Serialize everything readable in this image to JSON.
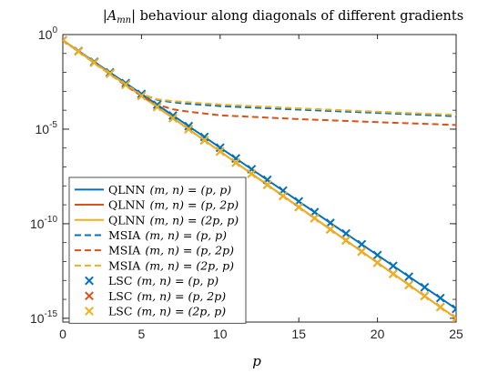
{
  "chart_data": {
    "type": "line",
    "title": "|A_mn| behaviour along diagonals of different gradients",
    "title_parts": {
      "bar": "|",
      "symbol": "A",
      "subscript": "mn",
      "rest": " behaviour along diagonals of different gradients"
    },
    "xlabel": "p",
    "ylabel": "",
    "xlim": [
      0,
      25
    ],
    "ylim_log10": [
      -15.2,
      0
    ],
    "y_scale": "log",
    "grid": false,
    "legend_position": "bottom-left",
    "x_ticks": [
      0,
      5,
      10,
      15,
      20,
      25
    ],
    "x_tick_labels": [
      "0",
      "5",
      "10",
      "15",
      "20",
      "25"
    ],
    "y_ticks_log10": [
      0,
      -5,
      -10,
      -15
    ],
    "y_tick_labels": [
      {
        "base": "10",
        "exp": "0"
      },
      {
        "base": "10",
        "exp": "-5"
      },
      {
        "base": "10",
        "exp": "-10"
      },
      {
        "base": "10",
        "exp": "-15"
      }
    ],
    "colors": {
      "blue": "#0072BD",
      "orange": "#D95319",
      "yellow": "#EDB120"
    },
    "series": [
      {
        "name": "QLNN (m, n) = (p, p)",
        "label_method": "QLNN",
        "label_math": "(m, n) = (p, p)",
        "style": "solid",
        "color": "#0072BD",
        "x": [
          0,
          25
        ],
        "log10_y": [
          -0.3,
          -14.5
        ]
      },
      {
        "name": "QLNN (m, n) = (p, 2p)",
        "label_method": "QLNN",
        "label_math": "(m, n) = (p, 2p)",
        "style": "solid",
        "color": "#D95319",
        "x": [
          0,
          25
        ],
        "log10_y": [
          -0.3,
          -15.0
        ]
      },
      {
        "name": "QLNN (m, n) = (2p, p)",
        "label_method": "QLNN",
        "label_math": "(m, n) = (2p, p)",
        "style": "solid",
        "color": "#EDB120",
        "x": [
          0,
          25
        ],
        "log10_y": [
          -0.3,
          -15.0
        ]
      },
      {
        "name": "MSIA (m, n) = (p, p)",
        "label_method": "MSIA",
        "label_math": "(m, n) = (p, p)",
        "style": "dashed",
        "color": "#0072BD",
        "x": [
          0,
          1,
          2,
          3,
          4,
          5,
          6,
          7,
          8,
          10,
          15,
          20,
          25
        ],
        "log10_y": [
          -0.3,
          -0.9,
          -1.5,
          -2.1,
          -2.65,
          -3.15,
          -3.45,
          -3.58,
          -3.66,
          -3.78,
          -3.97,
          -4.14,
          -4.32
        ]
      },
      {
        "name": "MSIA (m, n) = (p, 2p)",
        "label_method": "MSIA",
        "label_math": "(m, n) = (p, 2p)",
        "style": "dashed",
        "color": "#D95319",
        "x": [
          0,
          1,
          2,
          3,
          4,
          5,
          6,
          7,
          8,
          10,
          15,
          20,
          25
        ],
        "log10_y": [
          -0.3,
          -0.9,
          -1.5,
          -2.1,
          -2.7,
          -3.25,
          -3.7,
          -3.95,
          -4.08,
          -4.27,
          -4.47,
          -4.63,
          -4.78
        ]
      },
      {
        "name": "MSIA (m, n) = (2p, p)",
        "label_method": "MSIA",
        "label_math": "(m, n) = (2p, p)",
        "style": "dashed",
        "color": "#EDB120",
        "x": [
          0,
          1,
          2,
          3,
          4,
          5,
          6,
          7,
          8,
          10,
          15,
          20,
          25
        ],
        "log10_y": [
          -0.3,
          -0.9,
          -1.5,
          -2.1,
          -2.65,
          -3.15,
          -3.42,
          -3.52,
          -3.58,
          -3.7,
          -3.9,
          -4.08,
          -4.25
        ]
      },
      {
        "name": "LSC (m, n) = (p, p)",
        "label_method": "LSC",
        "label_math": "(m, n) = (p, p)",
        "style": "marker-x",
        "color": "#0072BD",
        "x": [
          0,
          1,
          2,
          3,
          4,
          5,
          6,
          7,
          8,
          9,
          10,
          11,
          12,
          13,
          14,
          15,
          16,
          17,
          18,
          19,
          20,
          21,
          22,
          23,
          24,
          25
        ],
        "log10_y": [
          -0.3,
          -0.87,
          -1.44,
          -2.0,
          -2.57,
          -3.14,
          -3.71,
          -4.28,
          -4.84,
          -5.41,
          -5.98,
          -6.55,
          -7.12,
          -7.68,
          -8.25,
          -8.82,
          -9.39,
          -9.96,
          -10.52,
          -11.09,
          -11.66,
          -12.23,
          -12.8,
          -13.36,
          -13.93,
          -14.5
        ]
      },
      {
        "name": "LSC (m, n) = (p, 2p)",
        "label_method": "LSC",
        "label_math": "(m, n) = (p, 2p)",
        "style": "marker-x",
        "color": "#D95319",
        "x": [
          0,
          1,
          2,
          3,
          4,
          5,
          6,
          7,
          8,
          9,
          10,
          11,
          12,
          13,
          14,
          15,
          16,
          17,
          18,
          19,
          20,
          21,
          22,
          23,
          24,
          25
        ],
        "log10_y": [
          -0.3,
          -0.89,
          -1.48,
          -2.06,
          -2.65,
          -3.24,
          -3.83,
          -4.42,
          -5.0,
          -5.59,
          -6.18,
          -6.77,
          -7.36,
          -7.94,
          -8.53,
          -9.12,
          -9.71,
          -10.3,
          -10.88,
          -11.47,
          -12.06,
          -12.65,
          -13.24,
          -13.82,
          -14.41,
          -15.0
        ]
      },
      {
        "name": "LSC (m, n) = (2p, p)",
        "label_method": "LSC",
        "label_math": "(m, n) = (2p, p)",
        "style": "marker-x",
        "color": "#EDB120",
        "x": [
          0,
          1,
          2,
          3,
          4,
          5,
          6,
          7,
          8,
          9,
          10,
          11,
          12,
          13,
          14,
          15,
          16,
          17,
          18,
          19,
          20,
          21,
          22,
          23,
          24,
          25
        ],
        "log10_y": [
          -0.3,
          -0.89,
          -1.48,
          -2.06,
          -2.65,
          -3.24,
          -3.83,
          -4.42,
          -5.0,
          -5.59,
          -6.18,
          -6.77,
          -7.36,
          -7.94,
          -8.53,
          -9.12,
          -9.71,
          -10.3,
          -10.88,
          -11.47,
          -12.06,
          -12.65,
          -13.24,
          -13.82,
          -14.41,
          -15.0
        ]
      }
    ]
  }
}
